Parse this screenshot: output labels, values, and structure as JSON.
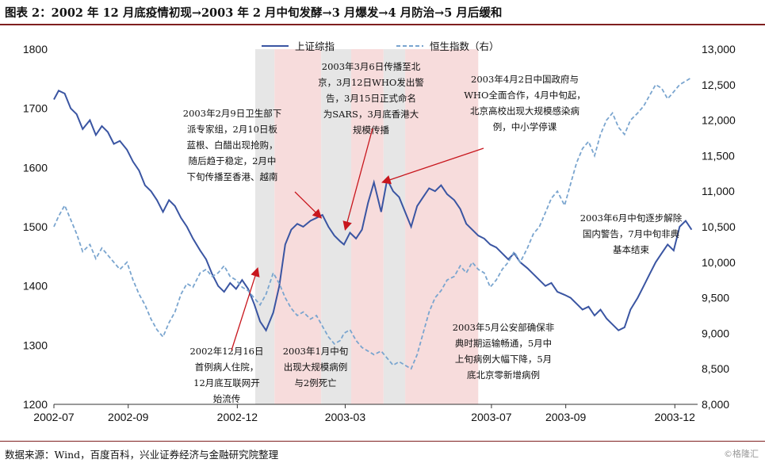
{
  "header": {
    "title": "图表 2：2002 年 12 月底疫情初现→2003 年 2 月中旬发酵→3 月爆发→4 月防治→5 月后缓和"
  },
  "footer": {
    "source": "数据来源：Wind，百度百科，兴业证券经济与金融研究院整理",
    "watermark": "©格隆汇"
  },
  "colors": {
    "sse": "#3a55a2",
    "hsi": "#7aa5cf",
    "shade_gray": "#e6e6e6",
    "shade_pink": "#f7dcdc",
    "arrow": "#c8161d"
  },
  "chart_data": {
    "type": "line",
    "legend_position": "top-center",
    "grid": false,
    "x_ticks": [
      "2002-07",
      "2002-09",
      "2002-12",
      "2003-03",
      "2003-07",
      "2003-09",
      "2003-12"
    ],
    "x_range": [
      "2002-07",
      "2003-12"
    ],
    "y_left": {
      "range": [
        1200,
        1800
      ],
      "ticks": [
        1200,
        1300,
        1400,
        1500,
        1600,
        1700,
        1800
      ]
    },
    "y_right": {
      "range": [
        8000,
        13000
      ],
      "ticks": [
        "8,000",
        "8,500",
        "9,000",
        "9,500",
        "10,000",
        "10,500",
        "11,000",
        "11,500",
        "12,000",
        "12,500",
        "13,000"
      ]
    },
    "shaded_periods": [
      {
        "start": "2002-12-16",
        "end": "2003-01-01",
        "color": "gray"
      },
      {
        "start": "2003-01-01",
        "end": "2003-02-09",
        "color": "pink"
      },
      {
        "start": "2003-02-09",
        "end": "2003-03-06",
        "color": "gray"
      },
      {
        "start": "2003-03-06",
        "end": "2003-04-02",
        "color": "pink"
      },
      {
        "start": "2003-04-02",
        "end": "2003-04-20",
        "color": "gray"
      },
      {
        "start": "2003-04-20",
        "end": "2003-06-20",
        "color": "pink"
      }
    ],
    "series": [
      {
        "name": "上证综指",
        "axis": "left",
        "style": "solid",
        "points": [
          [
            "2002-07-01",
            1715
          ],
          [
            "2002-07-05",
            1730
          ],
          [
            "2002-07-10",
            1725
          ],
          [
            "2002-07-15",
            1700
          ],
          [
            "2002-07-20",
            1690
          ],
          [
            "2002-07-25",
            1665
          ],
          [
            "2002-07-31",
            1680
          ],
          [
            "2002-08-05",
            1655
          ],
          [
            "2002-08-10",
            1670
          ],
          [
            "2002-08-15",
            1660
          ],
          [
            "2002-08-20",
            1640
          ],
          [
            "2002-08-25",
            1645
          ],
          [
            "2002-08-31",
            1630
          ],
          [
            "2002-09-05",
            1610
          ],
          [
            "2002-09-10",
            1595
          ],
          [
            "2002-09-15",
            1570
          ],
          [
            "2002-09-20",
            1560
          ],
          [
            "2002-09-25",
            1545
          ],
          [
            "2002-09-30",
            1525
          ],
          [
            "2002-10-05",
            1545
          ],
          [
            "2002-10-10",
            1535
          ],
          [
            "2002-10-15",
            1515
          ],
          [
            "2002-10-20",
            1500
          ],
          [
            "2002-10-25",
            1480
          ],
          [
            "2002-10-31",
            1460
          ],
          [
            "2002-11-05",
            1445
          ],
          [
            "2002-11-10",
            1420
          ],
          [
            "2002-11-15",
            1400
          ],
          [
            "2002-11-20",
            1390
          ],
          [
            "2002-11-25",
            1405
          ],
          [
            "2002-11-30",
            1395
          ],
          [
            "2002-12-05",
            1410
          ],
          [
            "2002-12-10",
            1395
          ],
          [
            "2002-12-15",
            1370
          ],
          [
            "2002-12-20",
            1340
          ],
          [
            "2002-12-25",
            1325
          ],
          [
            "2002-12-31",
            1355
          ],
          [
            "2003-01-05",
            1400
          ],
          [
            "2003-01-10",
            1470
          ],
          [
            "2003-01-15",
            1495
          ],
          [
            "2003-01-20",
            1505
          ],
          [
            "2003-01-25",
            1500
          ],
          [
            "2003-01-31",
            1510
          ],
          [
            "2003-02-05",
            1515
          ],
          [
            "2003-02-10",
            1520
          ],
          [
            "2003-02-15",
            1500
          ],
          [
            "2003-02-20",
            1485
          ],
          [
            "2003-02-25",
            1475
          ],
          [
            "2003-02-28",
            1470
          ],
          [
            "2003-03-05",
            1490
          ],
          [
            "2003-03-10",
            1480
          ],
          [
            "2003-03-15",
            1495
          ],
          [
            "2003-03-20",
            1540
          ],
          [
            "2003-03-25",
            1575
          ],
          [
            "2003-03-31",
            1525
          ],
          [
            "2003-04-05",
            1580
          ],
          [
            "2003-04-10",
            1560
          ],
          [
            "2003-04-15",
            1550
          ],
          [
            "2003-04-20",
            1525
          ],
          [
            "2003-04-25",
            1500
          ],
          [
            "2003-04-30",
            1535
          ],
          [
            "2003-05-05",
            1550
          ],
          [
            "2003-05-10",
            1565
          ],
          [
            "2003-05-15",
            1560
          ],
          [
            "2003-05-20",
            1570
          ],
          [
            "2003-05-25",
            1555
          ],
          [
            "2003-05-31",
            1545
          ],
          [
            "2003-06-05",
            1530
          ],
          [
            "2003-06-10",
            1505
          ],
          [
            "2003-06-15",
            1495
          ],
          [
            "2003-06-20",
            1485
          ],
          [
            "2003-06-25",
            1480
          ],
          [
            "2003-06-30",
            1470
          ],
          [
            "2003-07-05",
            1465
          ],
          [
            "2003-07-10",
            1455
          ],
          [
            "2003-07-15",
            1445
          ],
          [
            "2003-07-20",
            1455
          ],
          [
            "2003-07-25",
            1440
          ],
          [
            "2003-07-31",
            1430
          ],
          [
            "2003-08-05",
            1420
          ],
          [
            "2003-08-10",
            1410
          ],
          [
            "2003-08-15",
            1400
          ],
          [
            "2003-08-20",
            1405
          ],
          [
            "2003-08-25",
            1390
          ],
          [
            "2003-08-31",
            1385
          ],
          [
            "2003-09-05",
            1380
          ],
          [
            "2003-09-10",
            1370
          ],
          [
            "2003-09-15",
            1360
          ],
          [
            "2003-09-20",
            1365
          ],
          [
            "2003-09-25",
            1350
          ],
          [
            "2003-09-30",
            1360
          ],
          [
            "2003-10-05",
            1345
          ],
          [
            "2003-10-10",
            1335
          ],
          [
            "2003-10-15",
            1325
          ],
          [
            "2003-10-20",
            1330
          ],
          [
            "2003-10-25",
            1360
          ],
          [
            "2003-10-31",
            1380
          ],
          [
            "2003-11-05",
            1400
          ],
          [
            "2003-11-10",
            1420
          ],
          [
            "2003-11-15",
            1440
          ],
          [
            "2003-11-20",
            1455
          ],
          [
            "2003-11-25",
            1470
          ],
          [
            "2003-11-30",
            1460
          ],
          [
            "2003-12-05",
            1500
          ],
          [
            "2003-12-10",
            1510
          ],
          [
            "2003-12-15",
            1495
          ]
        ]
      },
      {
        "name": "恒生指数（右）",
        "axis": "right",
        "style": "dashed",
        "points": [
          [
            "2002-07-01",
            10500
          ],
          [
            "2002-07-05",
            10650
          ],
          [
            "2002-07-10",
            10800
          ],
          [
            "2002-07-15",
            10600
          ],
          [
            "2002-07-20",
            10400
          ],
          [
            "2002-07-25",
            10150
          ],
          [
            "2002-07-31",
            10250
          ],
          [
            "2002-08-05",
            10050
          ],
          [
            "2002-08-10",
            10200
          ],
          [
            "2002-08-15",
            10100
          ],
          [
            "2002-08-20",
            10000
          ],
          [
            "2002-08-25",
            9900
          ],
          [
            "2002-08-31",
            10000
          ],
          [
            "2002-09-05",
            9750
          ],
          [
            "2002-09-10",
            9550
          ],
          [
            "2002-09-15",
            9400
          ],
          [
            "2002-09-20",
            9200
          ],
          [
            "2002-09-25",
            9050
          ],
          [
            "2002-09-30",
            8950
          ],
          [
            "2002-10-05",
            9150
          ],
          [
            "2002-10-10",
            9300
          ],
          [
            "2002-10-15",
            9550
          ],
          [
            "2002-10-20",
            9700
          ],
          [
            "2002-10-25",
            9650
          ],
          [
            "2002-10-31",
            9850
          ],
          [
            "2002-11-05",
            9900
          ],
          [
            "2002-11-10",
            9800
          ],
          [
            "2002-11-15",
            9850
          ],
          [
            "2002-11-20",
            9950
          ],
          [
            "2002-11-25",
            9800
          ],
          [
            "2002-11-30",
            9750
          ],
          [
            "2002-12-05",
            9650
          ],
          [
            "2002-12-10",
            9600
          ],
          [
            "2002-12-15",
            9500
          ],
          [
            "2002-12-20",
            9400
          ],
          [
            "2002-12-25",
            9550
          ],
          [
            "2002-12-31",
            9850
          ],
          [
            "2003-01-05",
            9700
          ],
          [
            "2003-01-10",
            9500
          ],
          [
            "2003-01-15",
            9350
          ],
          [
            "2003-01-20",
            9250
          ],
          [
            "2003-01-25",
            9300
          ],
          [
            "2003-01-31",
            9200
          ],
          [
            "2003-02-05",
            9250
          ],
          [
            "2003-02-10",
            9100
          ],
          [
            "2003-02-15",
            8950
          ],
          [
            "2003-02-20",
            8850
          ],
          [
            "2003-02-25",
            8900
          ],
          [
            "2003-02-28",
            9000
          ],
          [
            "2003-03-05",
            9050
          ],
          [
            "2003-03-10",
            8900
          ],
          [
            "2003-03-15",
            8800
          ],
          [
            "2003-03-20",
            8750
          ],
          [
            "2003-03-25",
            8700
          ],
          [
            "2003-03-31",
            8750
          ],
          [
            "2003-04-05",
            8650
          ],
          [
            "2003-04-10",
            8550
          ],
          [
            "2003-04-15",
            8600
          ],
          [
            "2003-04-20",
            8550
          ],
          [
            "2003-04-25",
            8500
          ],
          [
            "2003-04-30",
            8700
          ],
          [
            "2003-05-05",
            9000
          ],
          [
            "2003-05-10",
            9300
          ],
          [
            "2003-05-15",
            9500
          ],
          [
            "2003-05-20",
            9600
          ],
          [
            "2003-05-25",
            9750
          ],
          [
            "2003-05-31",
            9800
          ],
          [
            "2003-06-05",
            9950
          ],
          [
            "2003-06-10",
            9850
          ],
          [
            "2003-06-15",
            10000
          ],
          [
            "2003-06-20",
            9900
          ],
          [
            "2003-06-25",
            9850
          ],
          [
            "2003-06-30",
            9650
          ],
          [
            "2003-07-05",
            9750
          ],
          [
            "2003-07-10",
            9900
          ],
          [
            "2003-07-15",
            10000
          ],
          [
            "2003-07-20",
            10150
          ],
          [
            "2003-07-25",
            10000
          ],
          [
            "2003-07-31",
            10200
          ],
          [
            "2003-08-05",
            10400
          ],
          [
            "2003-08-10",
            10500
          ],
          [
            "2003-08-15",
            10700
          ],
          [
            "2003-08-20",
            10900
          ],
          [
            "2003-08-25",
            11000
          ],
          [
            "2003-08-31",
            10800
          ],
          [
            "2003-09-05",
            11100
          ],
          [
            "2003-09-10",
            11400
          ],
          [
            "2003-09-15",
            11600
          ],
          [
            "2003-09-20",
            11700
          ],
          [
            "2003-09-25",
            11500
          ],
          [
            "2003-09-30",
            11800
          ],
          [
            "2003-10-05",
            12000
          ],
          [
            "2003-10-10",
            12100
          ],
          [
            "2003-10-15",
            11900
          ],
          [
            "2003-10-20",
            11800
          ],
          [
            "2003-10-25",
            12000
          ],
          [
            "2003-10-31",
            12100
          ],
          [
            "2003-11-05",
            12200
          ],
          [
            "2003-11-10",
            12350
          ],
          [
            "2003-11-15",
            12500
          ],
          [
            "2003-11-20",
            12450
          ],
          [
            "2003-11-25",
            12300
          ],
          [
            "2003-11-30",
            12400
          ],
          [
            "2003-12-05",
            12500
          ],
          [
            "2003-12-10",
            12550
          ],
          [
            "2003-12-15",
            12600
          ]
        ]
      }
    ],
    "annotations": [
      {
        "id": "a1",
        "lines": [
          "2002年12月16日",
          "首例病人住院，",
          "12月底互联网开",
          "始流传"
        ],
        "target": [
          "2002-12-18",
          1430
        ]
      },
      {
        "id": "a2",
        "lines": [
          "2003年1月中旬",
          "出现大规模病例",
          "与2例死亡"
        ],
        "target": null
      },
      {
        "id": "a3",
        "lines": [
          "2003年2月9日卫生部下",
          "派专家组，2月10日板",
          "蓝根、白醋出现抢购，",
          "随后趋于稳定，2月中",
          "下旬传播至香港、越南"
        ],
        "target": [
          "2003-02-09",
          1515
        ]
      },
      {
        "id": "a4",
        "lines": [
          "2003年3月6日传播至北",
          "京，3月12日WHO发出警",
          "告，3月15日正式命名",
          "为SARS，3月底香港大",
          "规模传播"
        ],
        "target": [
          "2003-03-01",
          1495
        ]
      },
      {
        "id": "a5",
        "lines": [
          "2003年4月2日中国政府与",
          "WHO全面合作，4月中旬起，",
          "北京高校出现大规模感染病",
          "例，中小学停课"
        ],
        "target": [
          "2003-04-01",
          1575
        ]
      },
      {
        "id": "a6",
        "lines": [
          "2003年5月公安部确保非",
          "典时期运输畅通，5月中",
          "上旬病例大幅下降，5月",
          "底北京零新增病例"
        ],
        "target": null
      },
      {
        "id": "a7",
        "lines": [
          "2003年6月中旬逐步解除",
          "国内警告，7月中旬非典",
          "基本结束"
        ],
        "target": null
      }
    ]
  }
}
